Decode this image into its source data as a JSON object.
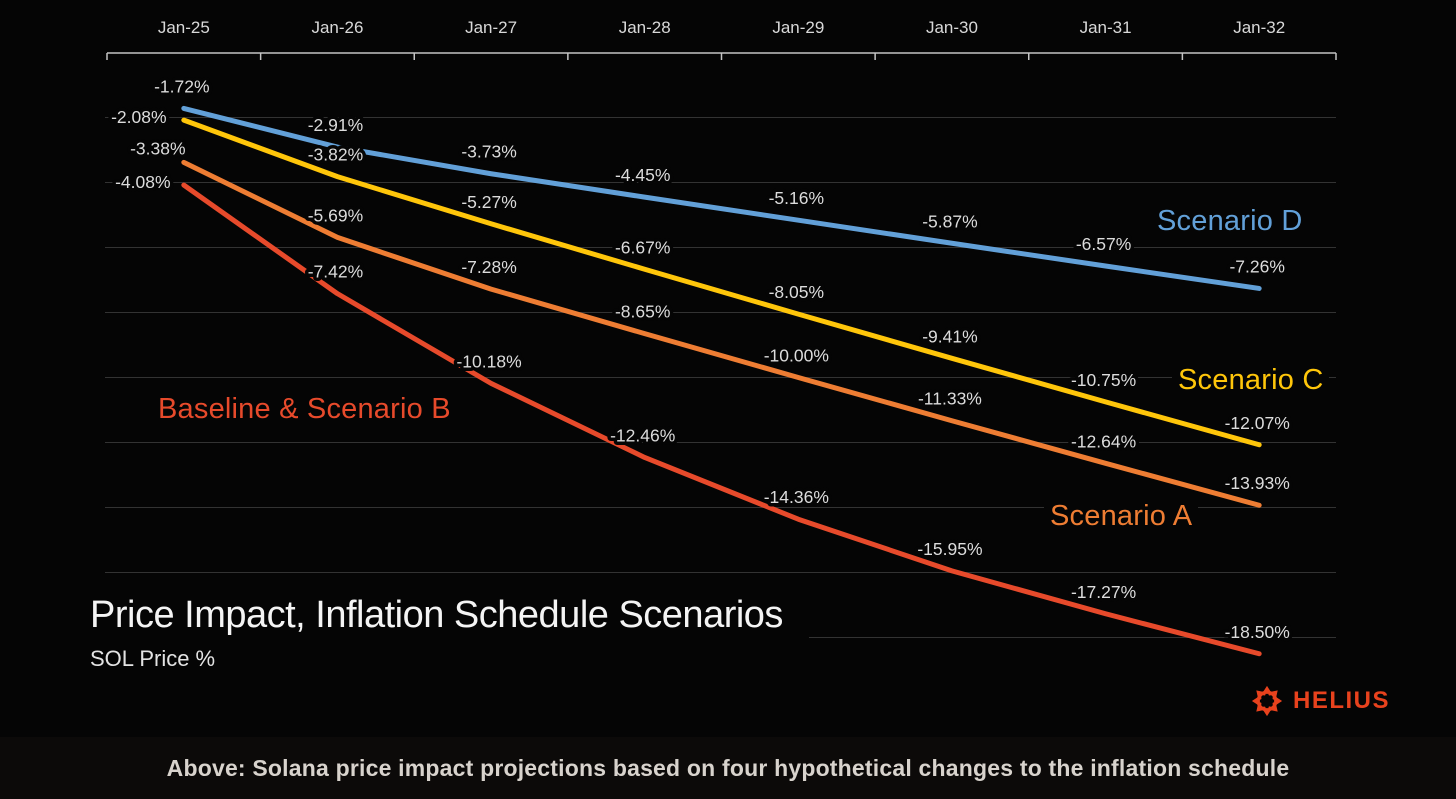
{
  "chart_data": {
    "type": "line",
    "title": "Price Impact, Inflation Schedule Scenarios",
    "subtitle": "SOL Price %",
    "xlabel": "",
    "ylabel": "SOL Price %",
    "categories": [
      "Jan-25",
      "Jan-26",
      "Jan-27",
      "Jan-28",
      "Jan-29",
      "Jan-30",
      "Jan-31",
      "Jan-32"
    ],
    "ylim": [
      -20,
      0
    ],
    "gridline_step_pct": 2,
    "legend_position": "inline-annotations",
    "grid": true,
    "series": [
      {
        "name": "Scenario D",
        "color": "#62A0D8",
        "values": [
          -1.72,
          -2.91,
          -3.73,
          -4.45,
          -5.16,
          -5.87,
          -6.57,
          -7.26
        ],
        "labels": [
          "-1.72%",
          "-2.91%",
          "-3.73%",
          "-4.45%",
          "-5.16%",
          "-5.87%",
          "-6.57%",
          "-7.26%"
        ]
      },
      {
        "name": "Scenario C",
        "color": "#FFC60A",
        "values": [
          -2.08,
          -3.82,
          -5.27,
          -6.67,
          -8.05,
          -9.41,
          -10.75,
          -12.07
        ],
        "labels": [
          "-2.08%",
          "-3.82%",
          "-5.27%",
          "-6.67%",
          "-8.05%",
          "-9.41%",
          "-10.75%",
          "-12.07%"
        ]
      },
      {
        "name": "Scenario A",
        "color": "#EE7D33",
        "values": [
          -3.38,
          -5.69,
          -7.28,
          -8.65,
          -10.0,
          -11.33,
          -12.64,
          -13.93
        ],
        "labels": [
          "-3.38%",
          "-5.69%",
          "-7.28%",
          "-8.65%",
          "-10.00%",
          "-11.33%",
          "-12.64%",
          "-13.93%"
        ]
      },
      {
        "name": "Baseline & Scenario B",
        "color": "#E74A2B",
        "values": [
          -4.08,
          -7.42,
          -10.18,
          -12.46,
          -14.36,
          -15.95,
          -17.27,
          -18.5
        ],
        "labels": [
          "-4.08%",
          "-7.42%",
          "-10.18%",
          "-12.46%",
          "-14.36%",
          "-15.95%",
          "-17.27%",
          "-18.50%"
        ]
      }
    ],
    "colors": {
      "background": "#050505",
      "gridline": "#333333",
      "axis": "#C4C4C4",
      "tick_text": "#D9D9D9",
      "value_text": "#DCDCDC"
    }
  },
  "branding": {
    "logo_text": "HELIUS",
    "color": "#E8421D"
  },
  "caption": "Above: Solana price impact projections based on four hypothetical changes to the inflation schedule"
}
